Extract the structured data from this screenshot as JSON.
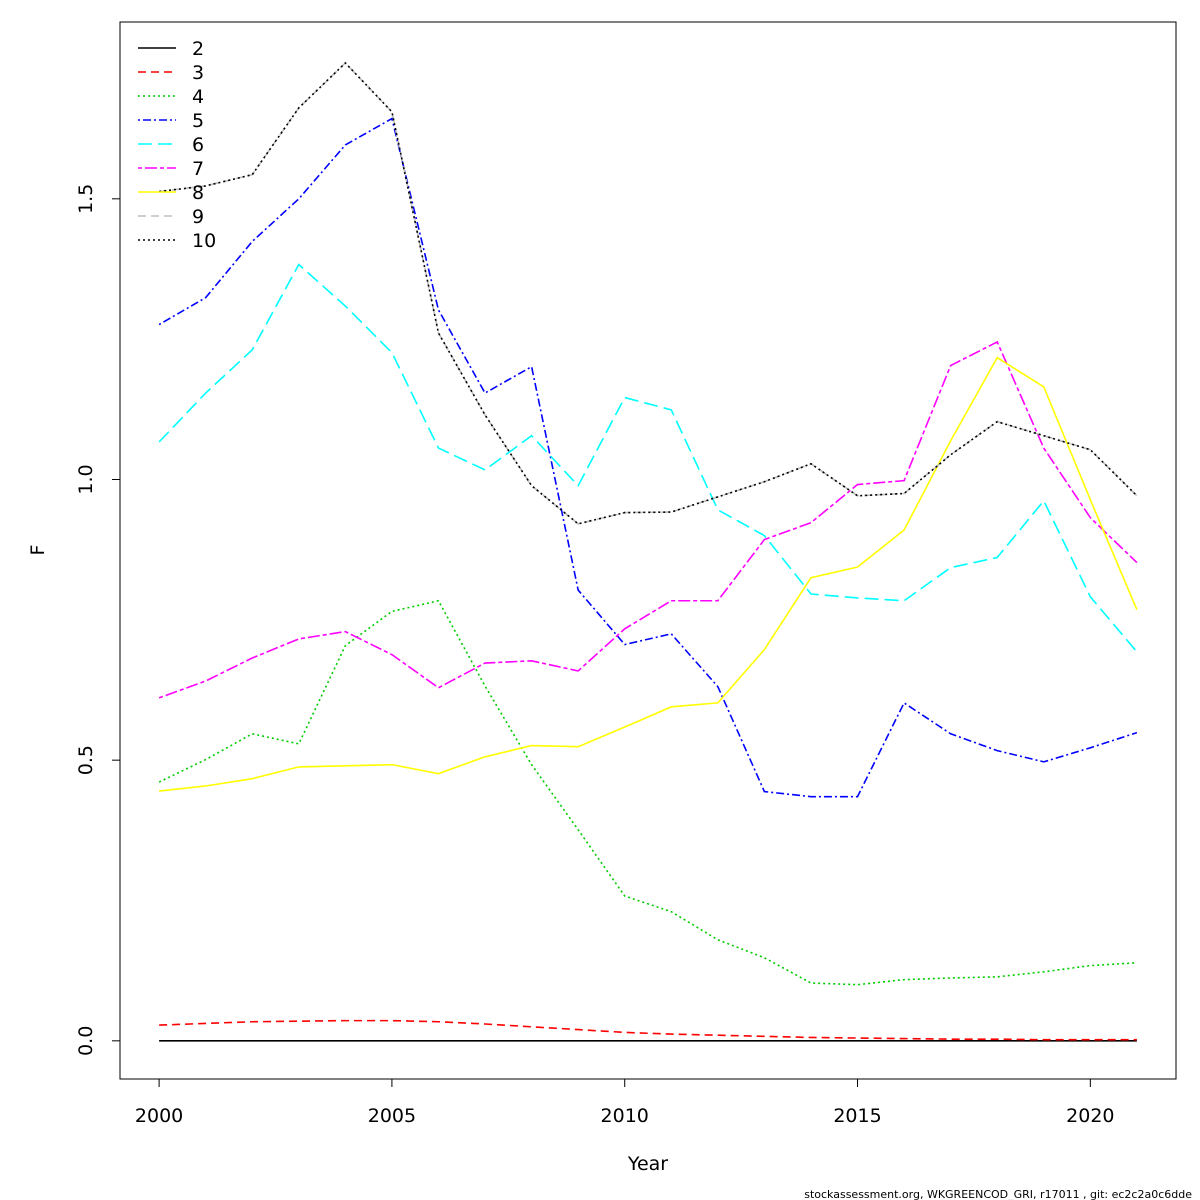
{
  "chart_data": {
    "type": "line",
    "x_label": "Year",
    "y_label": "F",
    "footer": "stockassessment.org, WKGREENCOD_GRI, r17011 , git: ec2c2a0c6dde",
    "x": [
      2000,
      2001,
      2002,
      2003,
      2004,
      2005,
      2006,
      2007,
      2008,
      2009,
      2010,
      2011,
      2012,
      2013,
      2014,
      2015,
      2016,
      2017,
      2018,
      2019,
      2020,
      2021
    ],
    "xlim": [
      1999.16,
      2021.84
    ],
    "xticks": [
      2000,
      2005,
      2010,
      2015,
      2020
    ],
    "ylim": [
      -0.068,
      1.815
    ],
    "yticks": [
      {
        "value": 0,
        "label": "0.0"
      },
      0.5,
      {
        "value": 1,
        "label": "1.0"
      },
      1.5
    ],
    "legend": "top-left",
    "series": [
      {
        "name": "2",
        "color": "#000000",
        "dash": "none",
        "values": [
          0,
          0,
          0,
          0,
          0,
          0,
          0,
          0,
          0,
          0,
          0,
          0,
          0,
          0,
          0,
          0,
          0,
          0,
          0,
          0,
          0,
          0
        ]
      },
      {
        "name": "3",
        "color": "#ff0000",
        "dash": "8 5",
        "values": [
          0.028,
          0.031,
          0.034,
          0.035,
          0.036,
          0.036,
          0.034,
          0.03,
          0.025,
          0.02,
          0.015,
          0.012,
          0.01,
          0.008,
          0.006,
          0.005,
          0.004,
          0.003,
          0.003,
          0.002,
          0.002,
          0.002
        ]
      },
      {
        "name": "4",
        "color": "#00cd00",
        "dash": "2 3",
        "values": [
          0.461,
          0.501,
          0.547,
          0.529,
          0.704,
          0.765,
          0.784,
          0.632,
          0.492,
          0.376,
          0.258,
          0.23,
          0.18,
          0.148,
          0.103,
          0.1,
          0.109,
          0.112,
          0.114,
          0.123,
          0.134,
          0.139
        ]
      },
      {
        "name": "5",
        "color": "#0000ff",
        "dash": "2 3 8 3",
        "values": [
          1.276,
          1.324,
          1.424,
          1.5,
          1.596,
          1.643,
          1.302,
          1.154,
          1.201,
          0.803,
          0.706,
          0.725,
          0.631,
          0.444,
          0.435,
          0.435,
          0.602,
          0.547,
          0.517,
          0.497,
          0.522,
          0.549
        ]
      },
      {
        "name": "6",
        "color": "#00ffff",
        "dash": "14 6",
        "values": [
          1.067,
          1.154,
          1.231,
          1.383,
          1.309,
          1.226,
          1.056,
          1.017,
          1.078,
          0.989,
          1.146,
          1.124,
          0.946,
          0.9,
          0.796,
          0.789,
          0.784,
          0.843,
          0.861,
          0.962,
          0.791,
          0.693
        ]
      },
      {
        "name": "7",
        "color": "#ff00ff",
        "dash": "4 3 12 3",
        "values": [
          0.611,
          0.641,
          0.682,
          0.716,
          0.729,
          0.688,
          0.629,
          0.673,
          0.677,
          0.659,
          0.734,
          0.784,
          0.784,
          0.893,
          0.923,
          0.991,
          0.998,
          1.203,
          1.245,
          1.056,
          0.932,
          0.852
        ]
      },
      {
        "name": "8",
        "color": "#ffff00",
        "dash": "none",
        "values": [
          0.445,
          0.454,
          0.467,
          0.488,
          0.49,
          0.492,
          0.476,
          0.506,
          0.526,
          0.524,
          0.559,
          0.595,
          0.602,
          0.697,
          0.825,
          0.844,
          0.91,
          1.069,
          1.217,
          1.165,
          0.964,
          0.768
        ]
      },
      {
        "name": "9",
        "color": "#bebebe",
        "dash": "8 5",
        "values": [
          1.513,
          1.523,
          1.543,
          1.662,
          1.742,
          1.655,
          1.261,
          1.115,
          0.989,
          0.921,
          0.941,
          0.942,
          0.969,
          0.996,
          1.028,
          0.971,
          0.975,
          1.044,
          1.103,
          1.078,
          1.053,
          0.971
        ]
      },
      {
        "name": "10",
        "color": "#000000",
        "dash": "2 3",
        "values": [
          1.513,
          1.523,
          1.543,
          1.662,
          1.742,
          1.655,
          1.261,
          1.115,
          0.989,
          0.921,
          0.941,
          0.942,
          0.969,
          0.996,
          1.028,
          0.971,
          0.975,
          1.044,
          1.103,
          1.078,
          1.053,
          0.971
        ]
      }
    ]
  }
}
